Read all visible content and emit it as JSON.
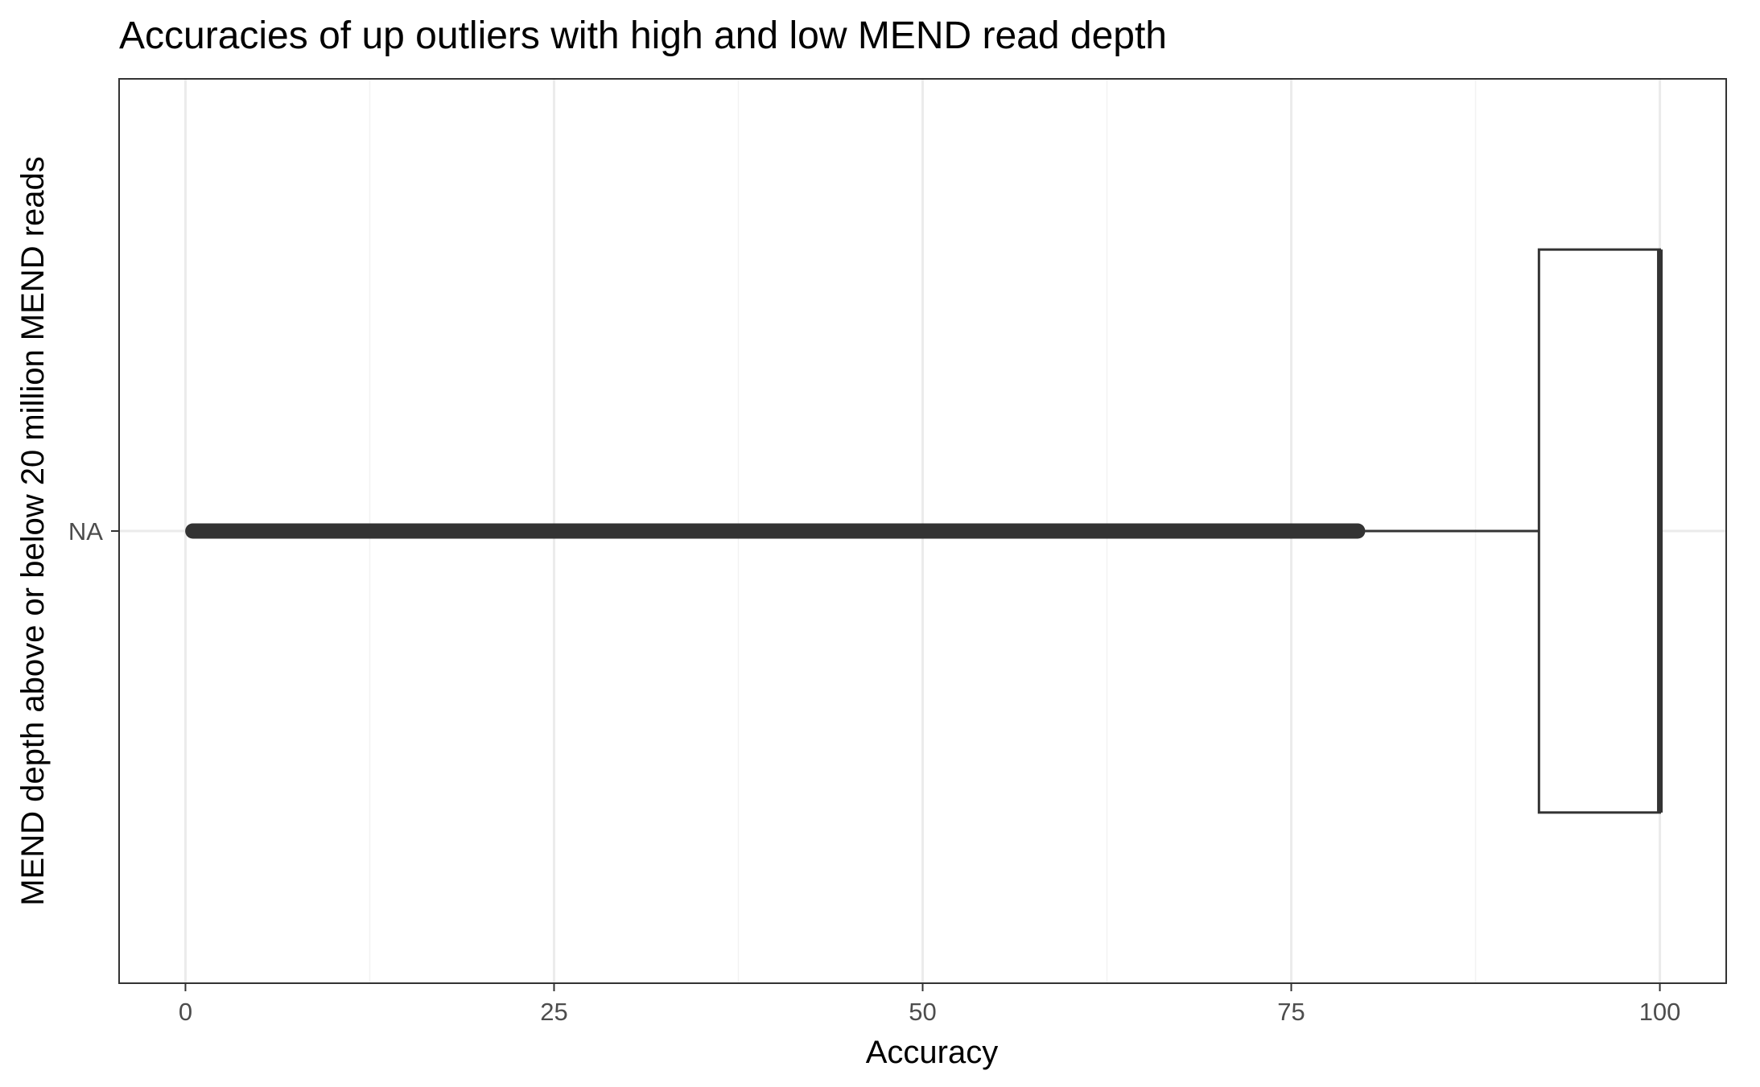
{
  "chart_data": {
    "type": "box",
    "title": "Accuracies of up outliers with high and low MEND read depth",
    "xlabel": "Accuracy",
    "ylabel": "MEND depth above or below 20 million MEND reads",
    "xlim": [
      -4.5,
      104.5
    ],
    "x_ticks": [
      0,
      25,
      50,
      75,
      100
    ],
    "x_tick_labels": [
      "0",
      "25",
      "50",
      "75",
      "100"
    ],
    "categories": [
      "NA"
    ],
    "grid": true,
    "legend": "none",
    "series": [
      {
        "category": "NA",
        "whisker_low": 80,
        "q1": 91.8,
        "median": 100,
        "q3": 100,
        "whisker_high": 100,
        "outlier_range": [
          0.5,
          79.5
        ]
      }
    ],
    "colors": {
      "box_stroke": "#333333",
      "box_fill": "#ffffff",
      "outliers": "#333333",
      "grid_major": "#ebebeb",
      "grid_minor": "#f2f2f2",
      "panel_border": "#333333",
      "tick_label": "#4d4d4d"
    }
  }
}
